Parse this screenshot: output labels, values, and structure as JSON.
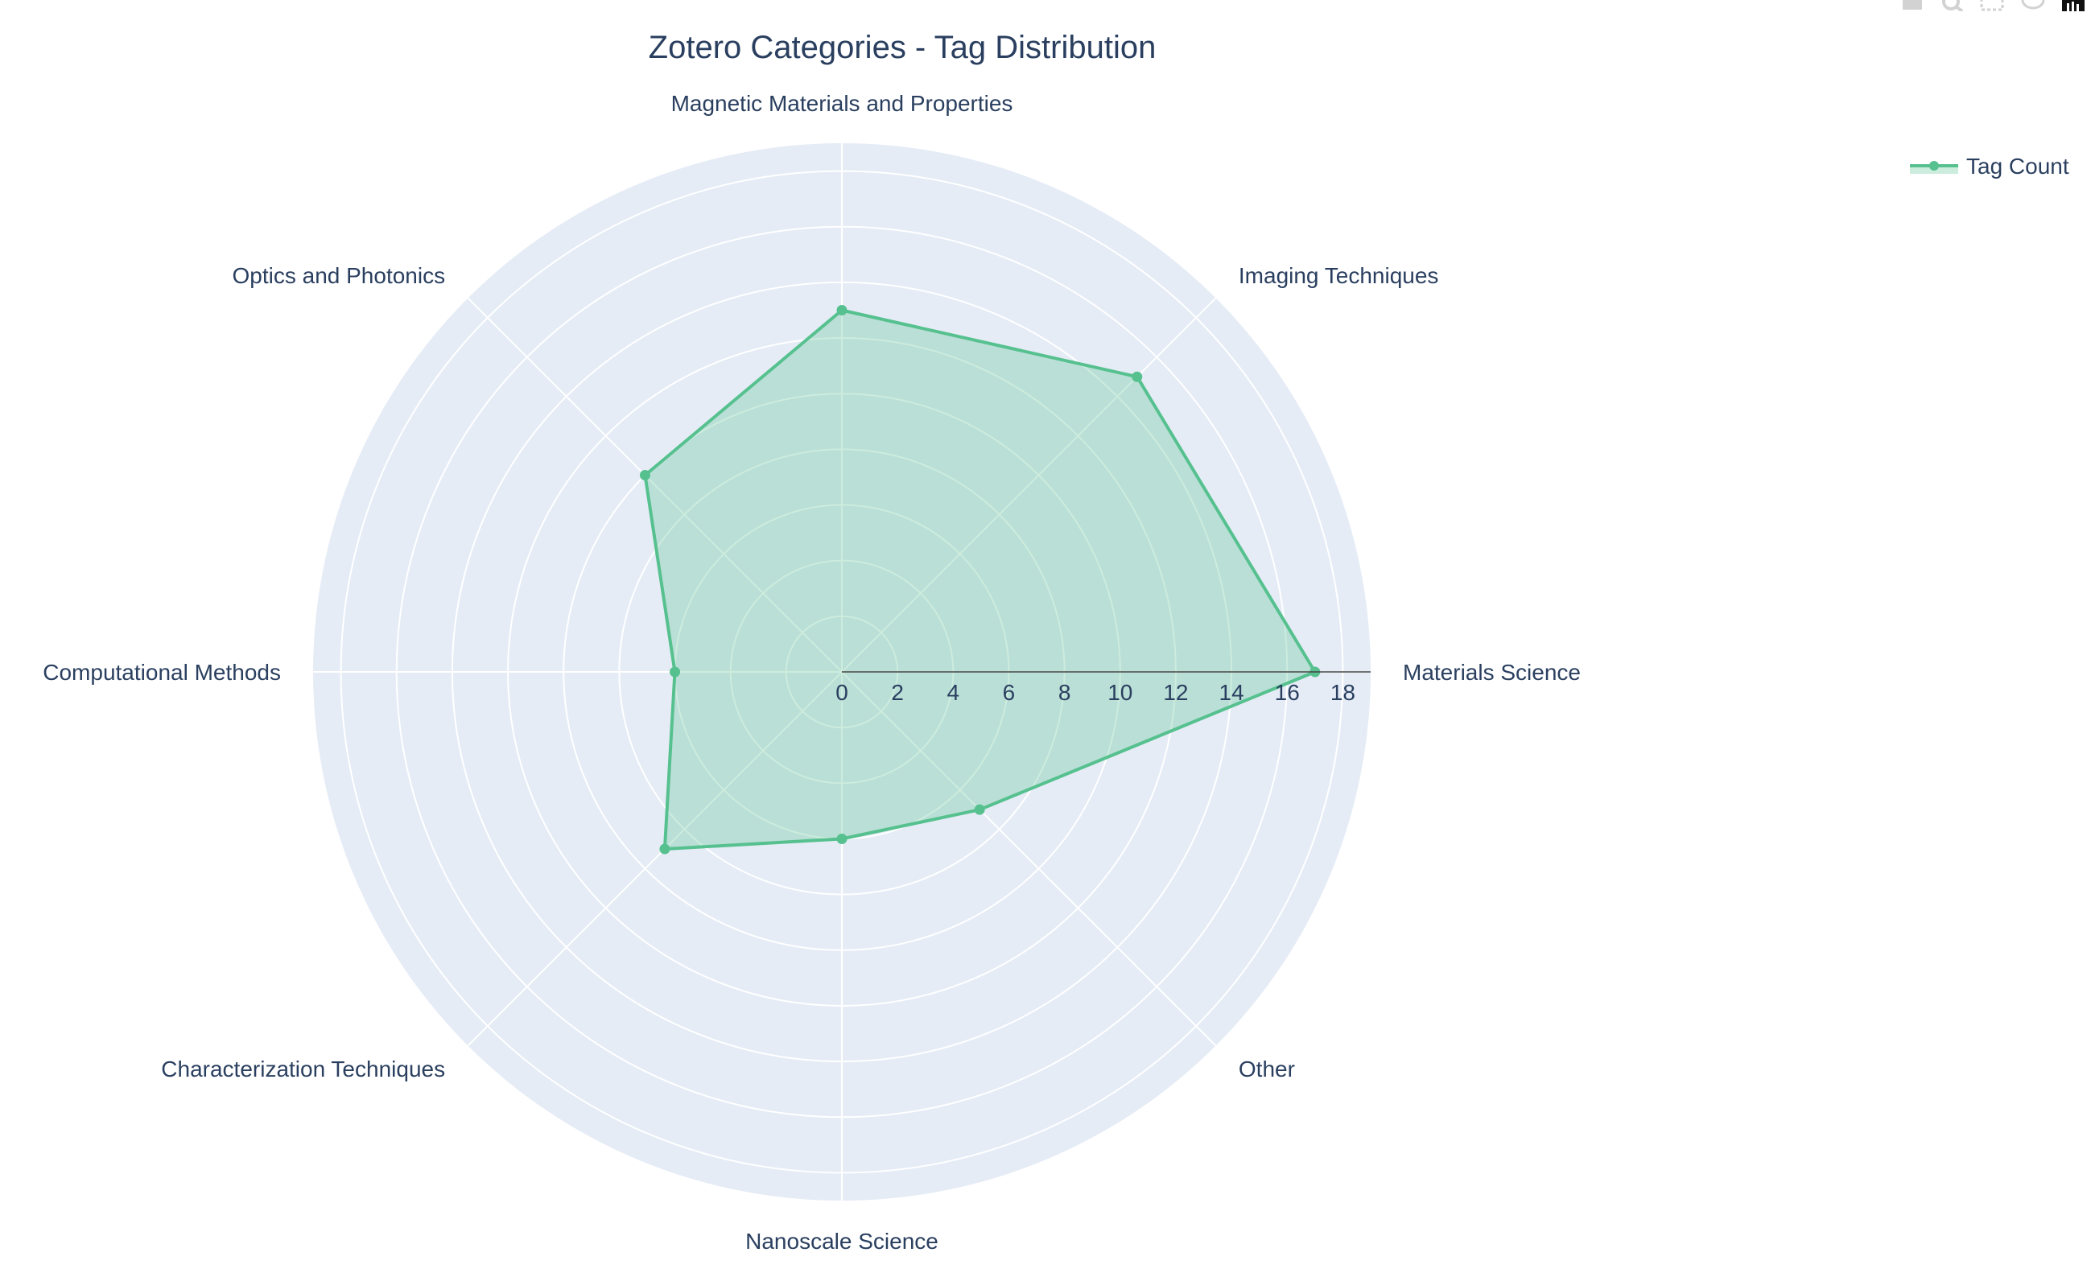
{
  "chart_data": {
    "type": "radar",
    "title": "Zotero Categories - Tag Distribution",
    "categories": [
      "Materials Science",
      "Imaging Techniques",
      "Magnetic Materials and Properties",
      "Optics and Photonics",
      "Computational Methods",
      "Characterization Techniques",
      "Nanoscale Science",
      "Other"
    ],
    "series": [
      {
        "name": "Tag Count",
        "values": [
          17,
          15,
          13,
          10,
          6,
          9,
          6,
          7
        ],
        "color": "#56c18f",
        "fill": "rgba(86,193,143,0.30)"
      }
    ],
    "radial_range": [
      0,
      19
    ],
    "radial_ticks": [
      0,
      2,
      4,
      6,
      8,
      10,
      12,
      14,
      16,
      18
    ],
    "grid": true,
    "legend_position": "top-right",
    "colors": {
      "polar_bg": "#e5ecf6",
      "grid": "#ffffff",
      "text": "#2a3f5f"
    }
  },
  "modebar": {
    "icons": [
      "camera-icon",
      "zoom-icon",
      "select-icon",
      "lasso-icon",
      "plotly-logo-icon"
    ]
  }
}
